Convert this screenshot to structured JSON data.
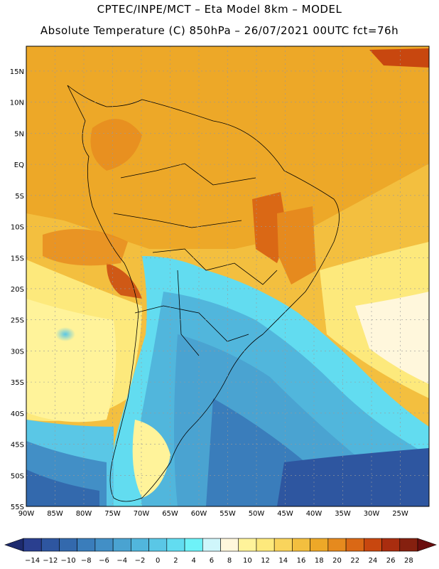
{
  "header": {
    "line1": "CPTEC/INPE/MCT  –  Eta Model 8km  –  MODEL",
    "line2": "Absolute Temperature (C) 850hPa  –  26/07/2021 00UTC fct=76h"
  },
  "map": {
    "lat_labels": [
      "15N",
      "10N",
      "5N",
      "EQ",
      "5S",
      "10S",
      "15S",
      "20S",
      "25S",
      "30S",
      "35S",
      "40S",
      "45S",
      "50S",
      "55S"
    ],
    "lon_labels": [
      "90W",
      "85W",
      "80W",
      "75W",
      "70W",
      "65W",
      "60W",
      "55W",
      "50W",
      "45W",
      "40W",
      "35W",
      "30W",
      "25W"
    ],
    "extent": {
      "lon": [
        -90,
        -20
      ],
      "lat": [
        -55,
        19
      ]
    }
  },
  "colorbar": {
    "labels": [
      "-14",
      "-12",
      "-10",
      "-8",
      "-6",
      "-4",
      "-2",
      "0",
      "2",
      "4",
      "6",
      "8",
      "10",
      "12",
      "14",
      "16",
      "18",
      "20",
      "22",
      "24",
      "26",
      "28"
    ],
    "colors": [
      "#2a3f8f",
      "#2e56a0",
      "#3369ad",
      "#3a7dbb",
      "#428fc6",
      "#4aa3d1",
      "#51b6dc",
      "#5ac7e6",
      "#62dcf0",
      "#6ef2f8",
      "#cff6fb",
      "#fff7dc",
      "#fff39a",
      "#fde97c",
      "#f9d45c",
      "#f3bf3f",
      "#eda828",
      "#e68a1e",
      "#da6815",
      "#c8470f",
      "#a92d0f",
      "#85200f"
    ],
    "under_color": "#1d2a6e",
    "over_color": "#6a0e0e"
  }
}
